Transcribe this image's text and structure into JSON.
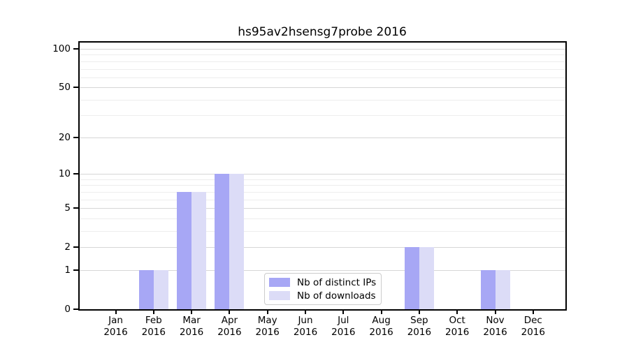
{
  "title": "hs95av2hsensg7probe 2016",
  "chart_data": {
    "type": "bar",
    "title": "hs95av2hsensg7probe 2016",
    "categories": [
      "Jan 2016",
      "Feb 2016",
      "Mar 2016",
      "Apr 2016",
      "May 2016",
      "Jun 2016",
      "Jul 2016",
      "Aug 2016",
      "Sep 2016",
      "Oct 2016",
      "Nov 2016",
      "Dec 2016"
    ],
    "series": [
      {
        "name": "Nb of distinct IPs",
        "color": "#a7a7f5",
        "values": [
          0,
          1,
          7,
          10,
          0,
          0,
          0,
          0,
          2,
          0,
          1,
          0
        ]
      },
      {
        "name": "Nb of downloads",
        "color": "#dcdcf7",
        "values": [
          0,
          1,
          7,
          10,
          0,
          0,
          0,
          0,
          2,
          0,
          1,
          0
        ]
      }
    ],
    "xlabel": "",
    "ylabel": "",
    "yscale": "log1p",
    "ylim": [
      0,
      113
    ],
    "ytick_values": [
      0,
      1,
      2,
      5,
      10,
      20,
      50,
      100
    ],
    "ytick_labels": [
      "0",
      "1",
      "2",
      "5",
      "10",
      "20",
      "50",
      "100"
    ],
    "yminor_values": [
      3,
      4,
      6,
      7,
      8,
      9,
      30,
      40,
      60,
      70,
      80,
      90
    ],
    "grid": "horizontal",
    "legend_position": "lower center"
  },
  "legend": {
    "items": [
      {
        "label": "Nb of distinct IPs"
      },
      {
        "label": "Nb of downloads"
      }
    ]
  },
  "colors": {
    "series_ips": "#a7a7f5",
    "series_downloads": "#dcdcf7",
    "grid_major": "#d6d6d6",
    "grid_minor": "#ededed",
    "axis": "#000000",
    "legend_border": "#cccccc"
  }
}
